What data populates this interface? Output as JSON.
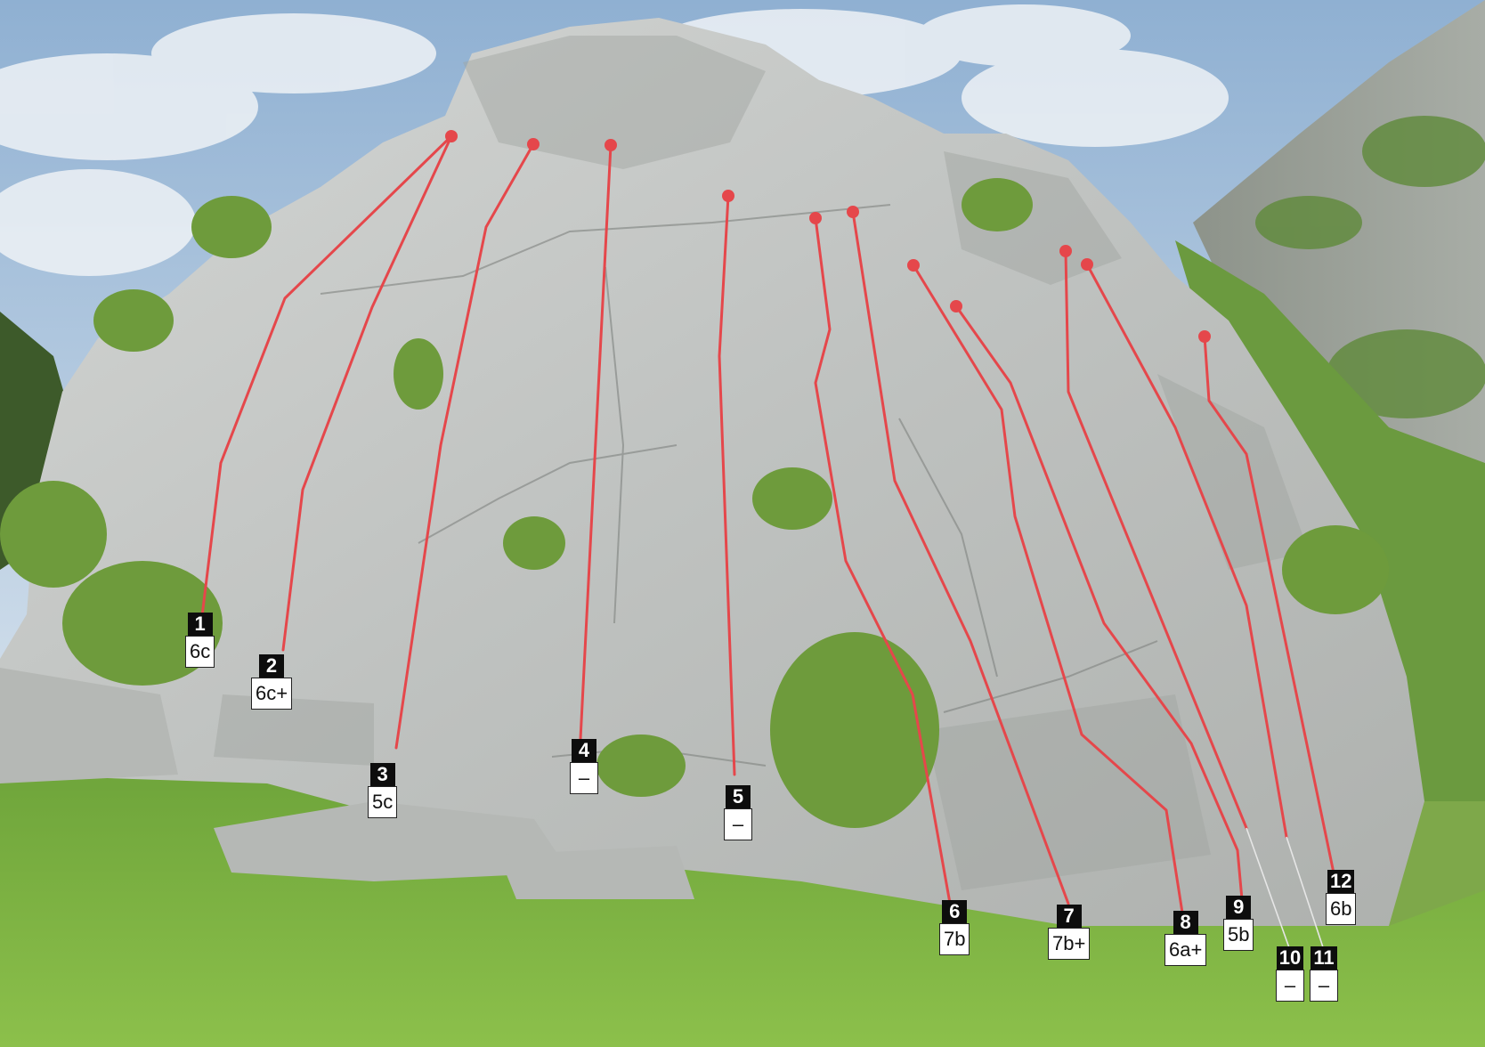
{
  "photo": {
    "subject": "limestone-crag-topo",
    "colors": {
      "route": "#e5474b",
      "sky": "#a9c2dc",
      "rock": "#c9ccc9",
      "grass": "#7cb342"
    }
  },
  "routes": [
    {
      "number": "1",
      "grade": "6c"
    },
    {
      "number": "2",
      "grade": "6c+"
    },
    {
      "number": "3",
      "grade": "5c"
    },
    {
      "number": "4",
      "grade": "–"
    },
    {
      "number": "5",
      "grade": "–"
    },
    {
      "number": "6",
      "grade": "7b"
    },
    {
      "number": "7",
      "grade": "7b+"
    },
    {
      "number": "8",
      "grade": "6a+"
    },
    {
      "number": "9",
      "grade": "5b"
    },
    {
      "number": "10",
      "grade": "–"
    },
    {
      "number": "11",
      "grade": "–"
    },
    {
      "number": "12",
      "grade": "6b"
    }
  ]
}
